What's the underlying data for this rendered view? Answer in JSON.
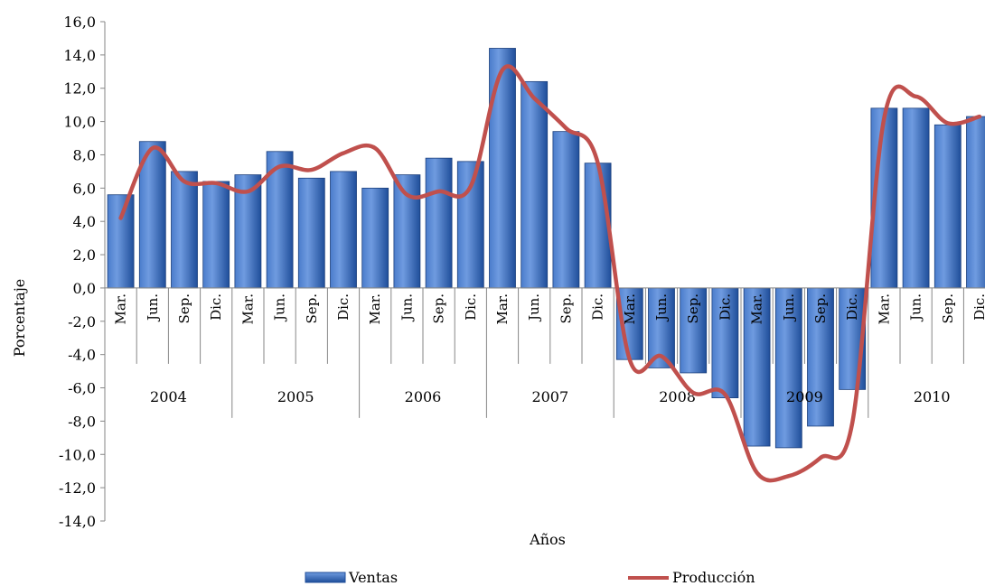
{
  "chart_data": {
    "type": "bar",
    "xlabel": "Años",
    "ylabel": "Porcentaje",
    "ylim": [
      -14,
      16
    ],
    "ytick_step": 2,
    "ytick_labels": [
      "-14,0",
      "-12,0",
      "-10,0",
      "-8,0",
      "-6,0",
      "-4,0",
      "-2,0",
      "0,0",
      "2,0",
      "4,0",
      "6,0",
      "8,0",
      "10,0",
      "12,0",
      "14,0",
      "16,0"
    ],
    "grid": false,
    "legend_position": "bottom",
    "years": [
      "2004",
      "2005",
      "2006",
      "2007",
      "2008",
      "2009",
      "2010"
    ],
    "quarters": [
      "Mar.",
      "Jun.",
      "Sep.",
      "Dic."
    ],
    "categories": [
      "Mar.",
      "Jun.",
      "Sep.",
      "Dic.",
      "Mar.",
      "Jun.",
      "Sep.",
      "Dic.",
      "Mar.",
      "Jun.",
      "Sep.",
      "Dic.",
      "Mar.",
      "Jun.",
      "Sep.",
      "Dic.",
      "Mar.",
      "Jun.",
      "Sep.",
      "Dic.",
      "Mar.",
      "Jun.",
      "Sep.",
      "Dic.",
      "Mar.",
      "Jun.",
      "Sep.",
      "Dic."
    ],
    "series": [
      {
        "name": "Ventas",
        "type": "bar",
        "color": "#2E63B8",
        "values": [
          5.6,
          8.8,
          7.0,
          6.4,
          6.8,
          8.2,
          6.6,
          7.0,
          6.0,
          6.8,
          7.8,
          7.6,
          14.4,
          12.4,
          9.4,
          7.5,
          -4.3,
          -4.8,
          -5.1,
          -6.6,
          -9.5,
          -9.6,
          -8.3,
          -6.1,
          10.8,
          10.8,
          9.8,
          10.3
        ]
      },
      {
        "name": "Producción",
        "type": "line",
        "color": "#C0504D",
        "values": [
          4.2,
          8.4,
          6.4,
          6.3,
          5.8,
          7.3,
          7.1,
          8.1,
          8.4,
          5.6,
          5.8,
          6.1,
          13.1,
          11.4,
          9.6,
          7.5,
          -4.3,
          -4.1,
          -6.3,
          -6.4,
          -11.1,
          -11.3,
          -10.2,
          -8.1,
          10.2,
          11.5,
          9.9,
          10.3
        ]
      }
    ]
  }
}
